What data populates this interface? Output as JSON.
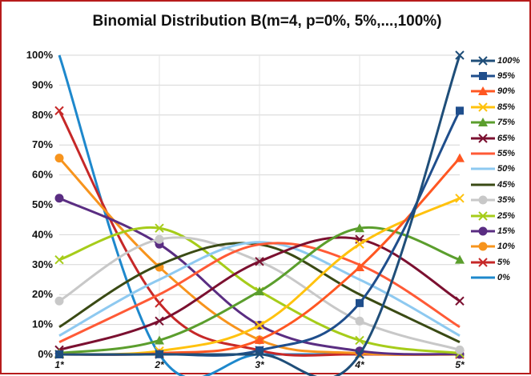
{
  "chart_data": {
    "type": "line",
    "title": "Binomial Distribution B(m=4, p=0%, 5%,...,100%)",
    "xlabel": "",
    "ylabel": "",
    "categories": [
      "1*",
      "2*",
      "3*",
      "4*",
      "5*"
    ],
    "ylim": [
      0,
      100
    ],
    "yticks": [
      "0%",
      "10%",
      "20%",
      "30%",
      "40%",
      "50%",
      "60%",
      "70%",
      "80%",
      "90%",
      "100%"
    ],
    "grid": true,
    "legend_position": "right",
    "series": [
      {
        "name": "100%",
        "color": "#1f4e79",
        "marker": "x",
        "values": [
          0,
          0,
          0,
          0,
          100
        ]
      },
      {
        "name": "95%",
        "color": "#1f4e8c",
        "marker": "square",
        "values": [
          0,
          0.05,
          1.35,
          17.15,
          81.45
        ]
      },
      {
        "name": "90%",
        "color": "#ff5722",
        "marker": "triangle",
        "values": [
          0.01,
          0.36,
          4.86,
          29.16,
          65.61
        ]
      },
      {
        "name": "85%",
        "color": "#ffc20e",
        "marker": "x",
        "values": [
          0.05,
          1.15,
          9.75,
          36.85,
          52.2
        ]
      },
      {
        "name": "75%",
        "color": "#5b9e2d",
        "marker": "triangle",
        "values": [
          0.39,
          4.69,
          21.09,
          42.19,
          31.64
        ]
      },
      {
        "name": "65%",
        "color": "#7b1030",
        "marker": "x",
        "values": [
          1.5,
          11.15,
          31.06,
          38.45,
          17.85
        ]
      },
      {
        "name": "55%",
        "color": "#ff5a36",
        "marker": "none",
        "values": [
          4.1,
          20.05,
          36.75,
          29.95,
          9.15
        ]
      },
      {
        "name": "50%",
        "color": "#8ec9f0",
        "marker": "none",
        "values": [
          6.25,
          25,
          37.5,
          25,
          6.25
        ]
      },
      {
        "name": "45%",
        "color": "#3a4a14",
        "marker": "none",
        "values": [
          9.15,
          29.95,
          36.75,
          20.05,
          4.1
        ]
      },
      {
        "name": "35%",
        "color": "#c8c8c8",
        "marker": "circle",
        "values": [
          17.85,
          38.45,
          31.06,
          11.15,
          1.5
        ]
      },
      {
        "name": "25%",
        "color": "#a6cc1a",
        "marker": "x",
        "values": [
          31.64,
          42.19,
          21.09,
          4.69,
          0.39
        ]
      },
      {
        "name": "15%",
        "color": "#5a2d82",
        "marker": "circle",
        "values": [
          52.2,
          36.85,
          9.75,
          1.15,
          0.05
        ]
      },
      {
        "name": "10%",
        "color": "#f7941d",
        "marker": "circle",
        "values": [
          65.61,
          29.16,
          4.86,
          0.36,
          0.01
        ]
      },
      {
        "name": "5%",
        "color": "#c62828",
        "marker": "x",
        "values": [
          81.45,
          17.15,
          1.35,
          0.05,
          0
        ]
      },
      {
        "name": "0%",
        "color": "#1e88cc",
        "marker": "none",
        "values": [
          100,
          0,
          0,
          0,
          0
        ]
      }
    ]
  }
}
